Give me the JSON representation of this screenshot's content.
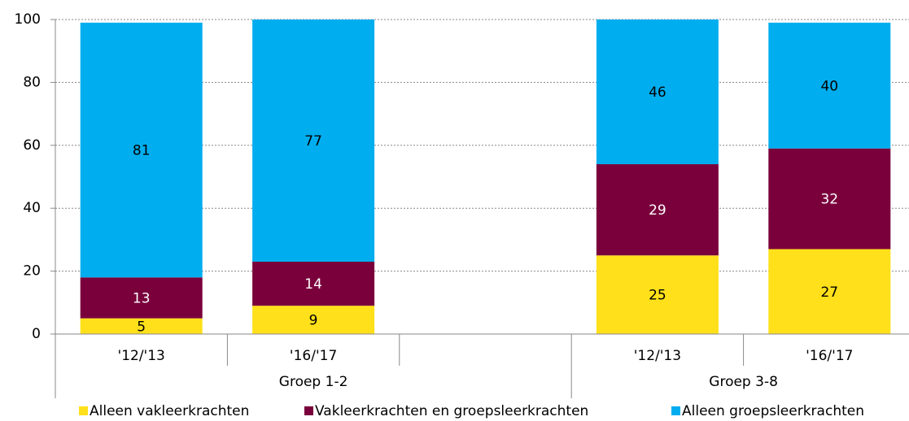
{
  "chart_data": {
    "type": "stacked_bar",
    "categories": [
      "'12/'13",
      "'16/'17",
      null,
      "'12/'13",
      "'16/'17"
    ],
    "groups": [
      "Groep 1-2",
      "Groep 3-8"
    ],
    "series": [
      {
        "name": "Alleen vakleerkrachten",
        "color": "#ffe01a",
        "values": [
          5,
          9,
          null,
          25,
          27
        ]
      },
      {
        "name": "Vakleerkrachten en groepsleerkrachten",
        "color": "#7a003c",
        "values": [
          13,
          14,
          null,
          29,
          32
        ]
      },
      {
        "name": "Alleen groepsleerkrachten",
        "color": "#00aeef",
        "values": [
          81,
          77,
          null,
          46,
          40
        ]
      }
    ],
    "ylim": [
      0,
      100
    ],
    "yticks": [
      0,
      20,
      40,
      60,
      80,
      100
    ],
    "grid": true,
    "legend": "bottom"
  }
}
